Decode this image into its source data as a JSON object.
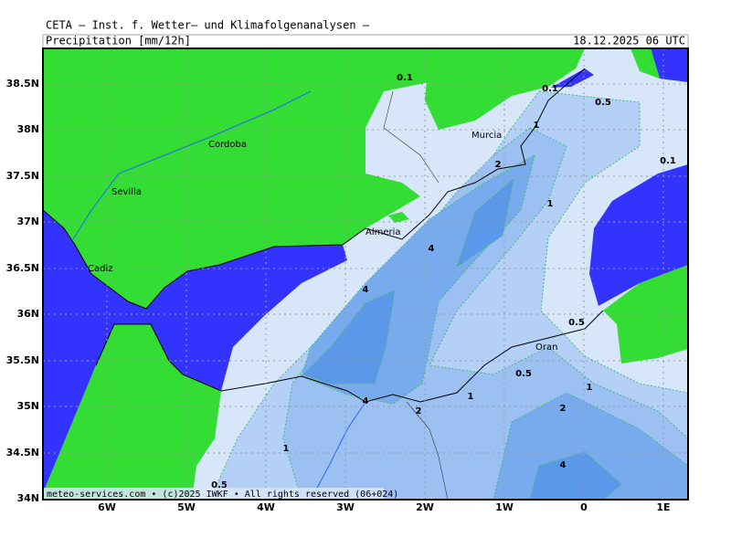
{
  "header": {
    "title": "CETA – Inst. f. Wetter– und Klimafolgenanalysen –",
    "subtitle": "Precipitation [mm/12h]",
    "date": "18.12.2025 06 UTC"
  },
  "axes": {
    "x_labels": [
      "6W",
      "5W",
      "4W",
      "3W",
      "2W",
      "1W",
      "0",
      "1E"
    ],
    "y_labels": [
      "38.5N",
      "38N",
      "37.5N",
      "37N",
      "36.5N",
      "36N",
      "35.5N",
      "35N",
      "34.5N",
      "34N"
    ]
  },
  "places": [
    "Murcia",
    "Cordoba",
    "Sevilla",
    "Almeria",
    "Cadiz",
    "Oran"
  ],
  "contour_labels": [
    "0.1",
    "0.1",
    "0.5",
    "0.1",
    "1",
    "2",
    "1",
    "4",
    "4",
    "0.5",
    "0.5",
    "1",
    "1",
    "4",
    "2",
    "2",
    "1",
    "4",
    "0.5"
  ],
  "footer": "meteo-services.com • (c)2025 IWKF • All rights reserved (06+024)"
}
